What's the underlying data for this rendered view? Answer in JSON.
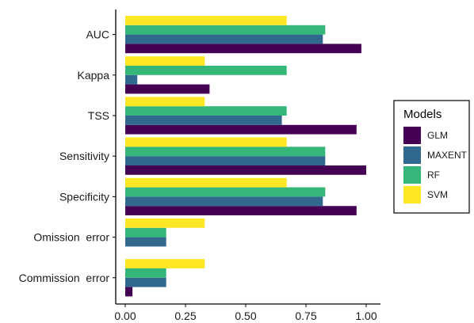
{
  "chart_data": {
    "type": "bar",
    "orientation": "horizontal",
    "categories": [
      "AUC",
      "Kappa",
      "TSS",
      "Sensitivity",
      "Specificity",
      "Omission  error",
      "Commission  error"
    ],
    "series": [
      {
        "name": "GLM",
        "color": "#440154",
        "values": [
          0.98,
          0.35,
          0.96,
          1.0,
          0.96,
          0.0,
          0.03
        ]
      },
      {
        "name": "MAXENT",
        "color": "#31688e",
        "values": [
          0.82,
          0.05,
          0.65,
          0.83,
          0.82,
          0.17,
          0.17
        ]
      },
      {
        "name": "RF",
        "color": "#35b779",
        "values": [
          0.83,
          0.67,
          0.67,
          0.83,
          0.83,
          0.17,
          0.17
        ]
      },
      {
        "name": "SVM",
        "color": "#fde725",
        "values": [
          0.67,
          0.33,
          0.33,
          0.67,
          0.67,
          0.33,
          0.33
        ]
      }
    ],
    "xlim": [
      0,
      1.0
    ],
    "xticks": [
      "0.00",
      "0.25",
      "0.50",
      "0.75",
      "1.00"
    ],
    "xtick_values": [
      0,
      0.25,
      0.5,
      0.75,
      1.0
    ],
    "legend": {
      "title": "Models",
      "position": "right"
    },
    "grid": false
  }
}
